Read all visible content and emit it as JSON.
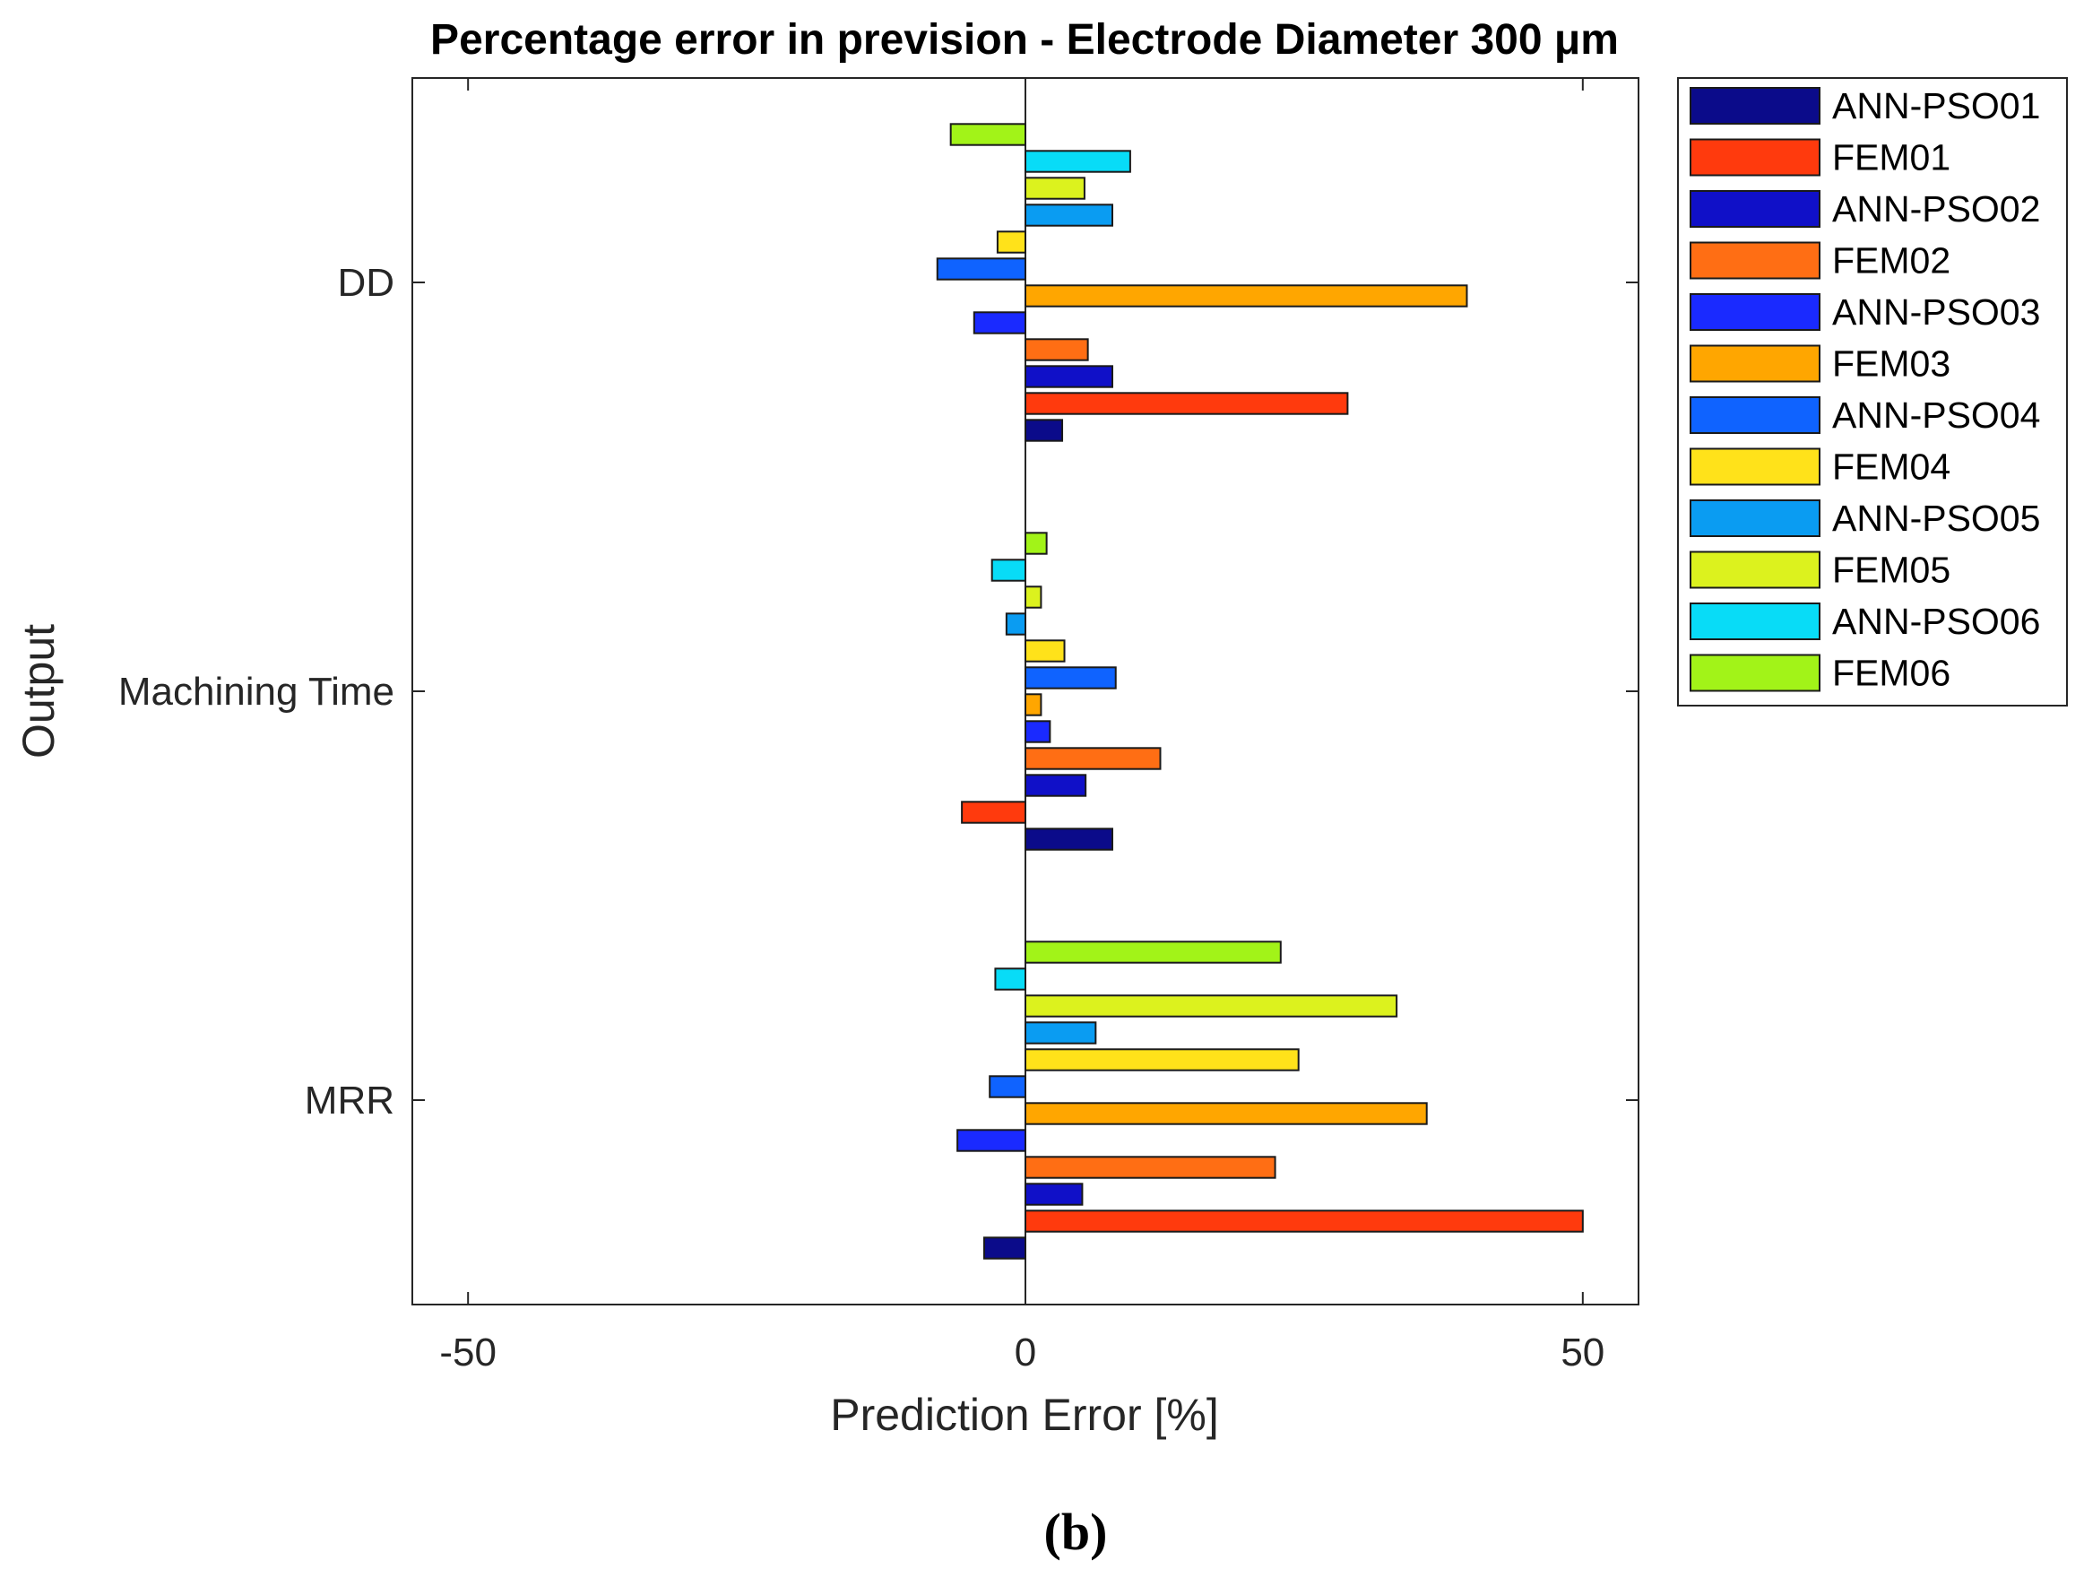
{
  "chart_data": {
    "type": "bar",
    "orientation": "horizontal",
    "title": "Percentage error in prevision - Electrode Diameter 300 μm",
    "xlabel": "Prediction Error [%]",
    "ylabel": "Output",
    "xlim": [
      -55,
      55
    ],
    "xticks": [
      -50,
      0,
      50
    ],
    "xtick_labels": [
      "-50",
      "0",
      "50"
    ],
    "categories": [
      "DD",
      "Machining Time",
      "MRR"
    ],
    "legend_position": "outside-right",
    "series": [
      {
        "name": "ANN-PSO01",
        "color": "#0b0b8a",
        "values": [
          3.3,
          7.8,
          -3.7
        ]
      },
      {
        "name": "FEM01",
        "color": "#ff3a0d",
        "values": [
          28.9,
          -5.7,
          50.0
        ]
      },
      {
        "name": "ANN-PSO02",
        "color": "#1010c8",
        "values": [
          7.8,
          5.4,
          5.1
        ]
      },
      {
        "name": "FEM02",
        "color": "#ff6e14",
        "values": [
          5.6,
          12.1,
          22.4
        ]
      },
      {
        "name": "ANN-PSO03",
        "color": "#1a2aff",
        "values": [
          -4.6,
          2.2,
          -6.1
        ]
      },
      {
        "name": "FEM03",
        "color": "#ffa600",
        "values": [
          39.6,
          1.4,
          36.0
        ]
      },
      {
        "name": "ANN-PSO04",
        "color": "#0f63ff",
        "values": [
          -7.9,
          8.1,
          -3.2
        ]
      },
      {
        "name": "FEM04",
        "color": "#ffe21a",
        "values": [
          -2.5,
          3.5,
          24.5
        ]
      },
      {
        "name": "ANN-PSO05",
        "color": "#0a9cf2",
        "values": [
          7.8,
          -1.7,
          6.3
        ]
      },
      {
        "name": "FEM05",
        "color": "#dcf21e",
        "values": [
          5.3,
          1.4,
          33.3
        ]
      },
      {
        "name": "ANN-PSO06",
        "color": "#08dcf7",
        "values": [
          9.4,
          -3.0,
          -2.7
        ]
      },
      {
        "name": "FEM06",
        "color": "#a2f318",
        "values": [
          -6.7,
          1.9,
          22.9
        ]
      }
    ],
    "grid": false
  },
  "caption": "(b)"
}
